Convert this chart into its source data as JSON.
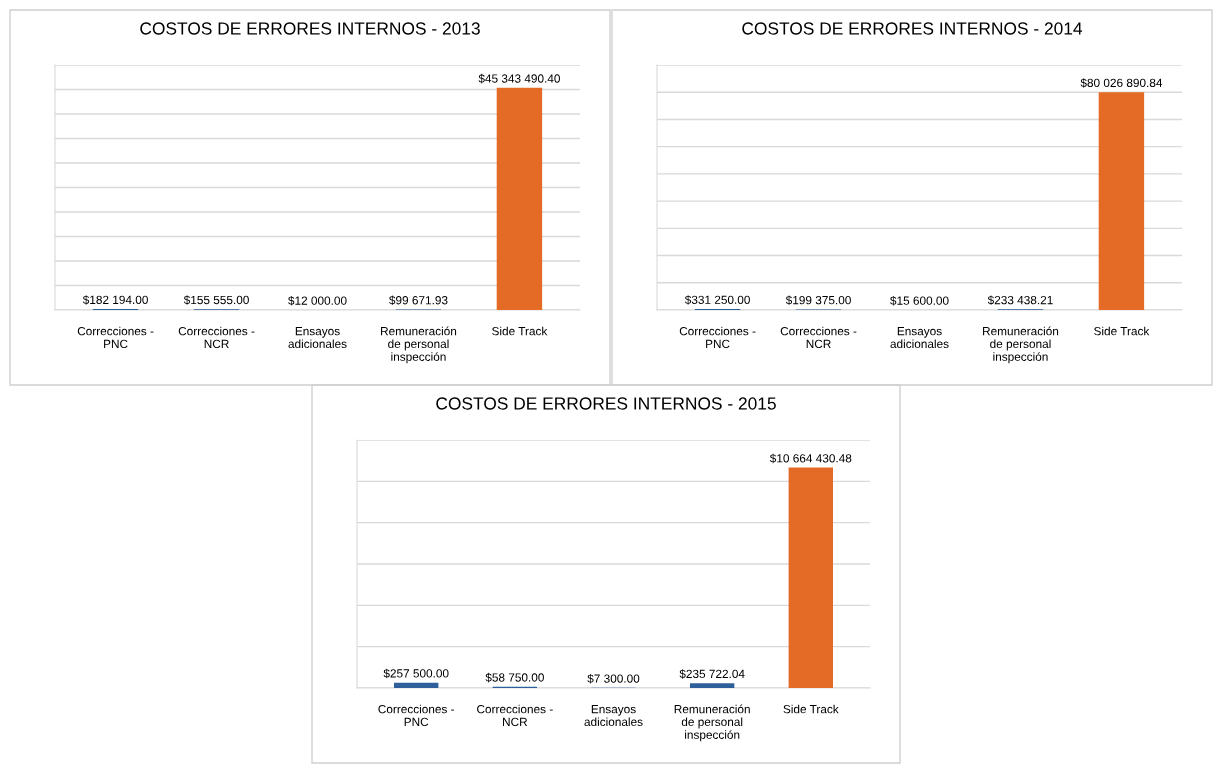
{
  "chart_data": [
    {
      "type": "bar",
      "title": "COSTOS DE ERRORES INTERNOS - 2013",
      "categories": [
        "Correcciones -\nPNC",
        "Correcciones -\nNCR",
        "Ensayos\nadicionales",
        "Remuneración\nde personal\ninspección",
        "Side Track"
      ],
      "values": [
        182194.0,
        155555.0,
        12000.0,
        99671.93,
        45343490.4
      ],
      "colors": [
        "#2e5f9a",
        "#2e5f9a",
        "#2e5f9a",
        "#2e5f9a",
        "#e46b25"
      ],
      "value_labels": [
        "$182 194.00",
        "$155 555.00",
        "$12 000.00",
        "$99 671.93",
        "$45 343 490.40"
      ],
      "ylim": [
        0,
        50000000
      ],
      "yticks": [
        {
          "value": 0,
          "label": null
        },
        {
          "value": 5000000,
          "label": null
        },
        {
          "value": 10000000,
          "label": null
        },
        {
          "value": 15000000,
          "label": null
        },
        {
          "value": 20000000,
          "label": null
        },
        {
          "value": 25000000,
          "label": null
        },
        {
          "value": 30000000,
          "label": null
        },
        {
          "value": 35000000,
          "label": null
        },
        {
          "value": 40000000,
          "label": null
        },
        {
          "value": 45000000,
          "label": null
        },
        {
          "value": 50000000,
          "label": null
        }
      ],
      "grid": "y",
      "tick_labels": "x"
    },
    {
      "type": "bar",
      "title": "COSTOS DE ERRORES INTERNOS - 2014",
      "categories": [
        "Correcciones -\nPNC",
        "Correcciones -\nNCR",
        "Ensayos\nadicionales",
        "Remuneración\nde personal\ninspección",
        "Side Track"
      ],
      "values": [
        331250.0,
        199375.0,
        15600.0,
        233438.21,
        80026890.84
      ],
      "colors": [
        "#2e5f9a",
        "#2e5f9a",
        "#2e5f9a",
        "#2e5f9a",
        "#e46b25"
      ],
      "value_labels": [
        "$331 250.00",
        "$199 375.00",
        "$15 600.00",
        "$233 438.21",
        "$80 026 890.84"
      ],
      "ylim": [
        0,
        90000000
      ],
      "yticks": [
        {
          "value": 0,
          "label": null
        },
        {
          "value": 10000000,
          "label": null
        },
        {
          "value": 20000000,
          "label": null
        },
        {
          "value": 30000000,
          "label": null
        },
        {
          "value": 40000000,
          "label": null
        },
        {
          "value": 50000000,
          "label": null
        },
        {
          "value": 60000000,
          "label": null
        },
        {
          "value": 70000000,
          "label": null
        },
        {
          "value": 80000000,
          "label": null
        },
        {
          "value": 90000000,
          "label": null
        }
      ],
      "grid": "y",
      "tick_labels": "x"
    },
    {
      "type": "bar",
      "title": "COSTOS DE ERRORES INTERNOS - 2015",
      "categories": [
        "Correcciones -\nPNC",
        "Correcciones -\nNCR",
        "Ensayos\nadicionales",
        "Remuneración\nde personal\ninspección",
        "Side Track"
      ],
      "values": [
        257500.0,
        58750.0,
        7300.0,
        235722.04,
        10664430.48
      ],
      "colors": [
        "#2e5f9a",
        "#2e5f9a",
        "#2e5f9a",
        "#2e5f9a",
        "#e46b25"
      ],
      "value_labels": [
        "$257 500.00",
        "$58 750.00",
        "$7 300.00",
        "$235 722.04",
        "$10 664 430.48"
      ],
      "ylim": [
        0,
        12000000
      ],
      "yticks": [
        {
          "value": 0,
          "label": null
        },
        {
          "value": 2000000,
          "label": null
        },
        {
          "value": 4000000,
          "label": null
        },
        {
          "value": 6000000,
          "label": null
        },
        {
          "value": 8000000,
          "label": null
        },
        {
          "value": 10000000,
          "label": null
        },
        {
          "value": 12000000,
          "label": null
        }
      ],
      "grid": "y",
      "tick_labels": "x"
    }
  ]
}
